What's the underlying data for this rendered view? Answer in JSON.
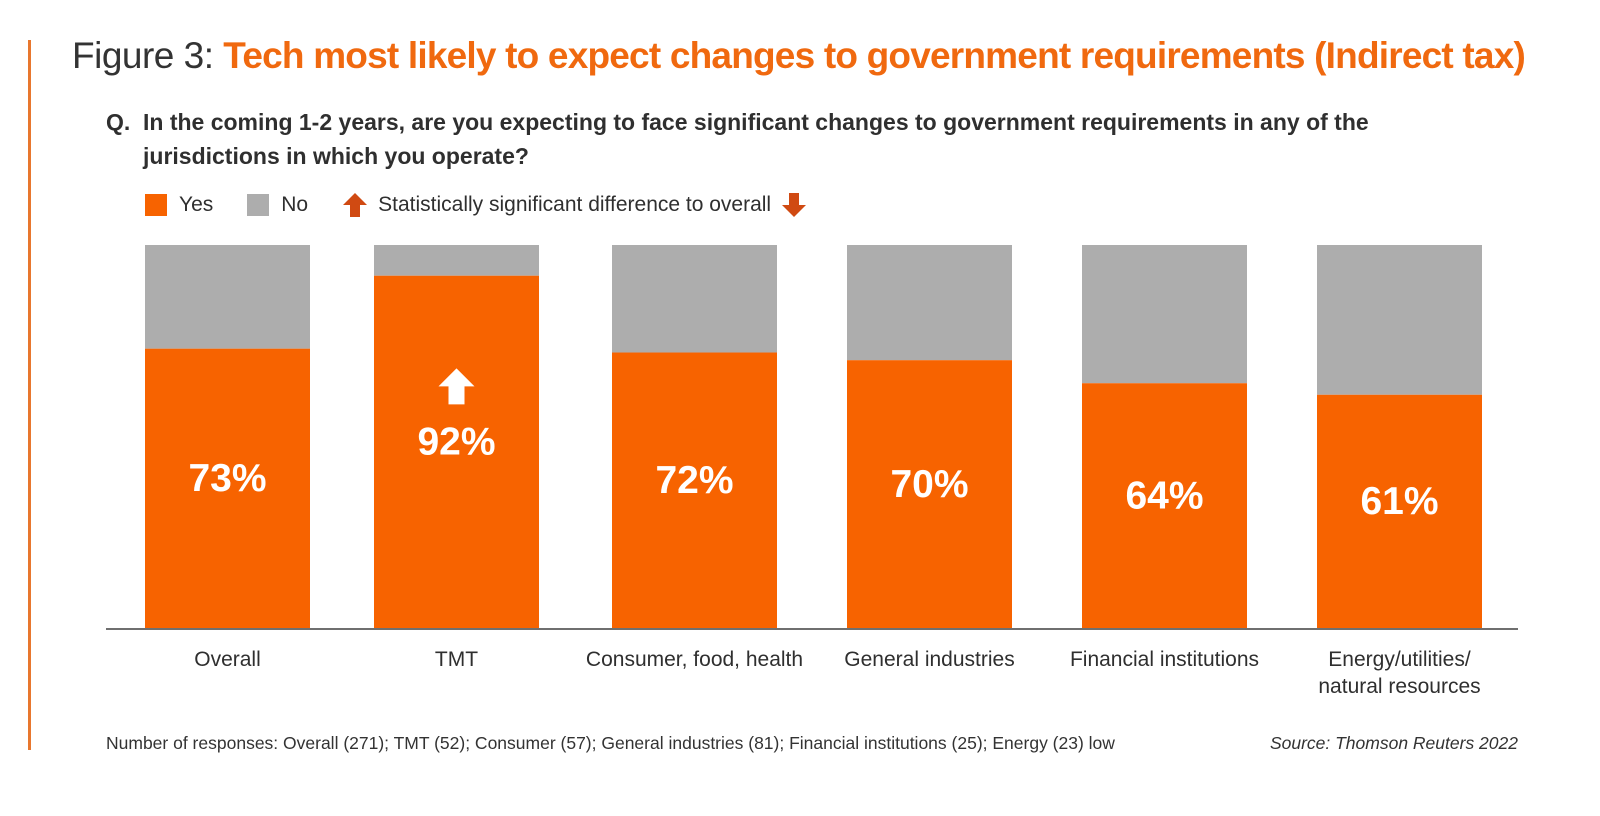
{
  "colors": {
    "yes": "#f76300",
    "no": "#adadad",
    "accent": "#f0690f",
    "arrow": "#d04a12",
    "axis": "#6f6f6f",
    "label_on_bar": "#ffffff"
  },
  "header": {
    "figure_prefix": "Figure 3:",
    "title": "Tech most likely to expect changes to government requirements (Indirect tax)"
  },
  "question": {
    "label": "Q.",
    "text": "In the coming 1-2 years, are you expecting to face significant changes to government requirements in any of the jurisdictions in which you operate?"
  },
  "legend": {
    "yes_label": "Yes",
    "no_label": "No",
    "significance_label": "Statistically significant difference to overall",
    "up_icon": "arrow-up-icon",
    "down_icon": "arrow-down-icon"
  },
  "chart_data": {
    "type": "bar",
    "stacked": true,
    "title": "Tech most likely to expect changes to government requirements (Indirect tax)",
    "xlabel": "",
    "ylabel": "",
    "ylim": [
      0,
      100
    ],
    "grid": false,
    "legend_position": "top-left",
    "categories": [
      "Overall",
      "TMT",
      "Consumer, food, health",
      "General industries",
      "Financial institutions",
      "Energy/utilities/ natural resources"
    ],
    "category_lines": [
      [
        "Overall"
      ],
      [
        "TMT"
      ],
      [
        "Consumer, food, health"
      ],
      [
        "General industries"
      ],
      [
        "Financial institutions"
      ],
      [
        "Energy/utilities/",
        "natural resources"
      ]
    ],
    "series": [
      {
        "name": "Yes",
        "values": [
          73,
          92,
          72,
          70,
          64,
          61
        ]
      },
      {
        "name": "No",
        "values": [
          27,
          8,
          28,
          30,
          36,
          39
        ]
      }
    ],
    "data_labels": [
      "73%",
      "92%",
      "72%",
      "70%",
      "64%",
      "61%"
    ],
    "significance": [
      "none",
      "up",
      "none",
      "none",
      "none",
      "none"
    ]
  },
  "footer": {
    "responses": "Number of responses: Overall (271); TMT (52); Consumer (57); General industries (81); Financial institutions (25); Energy (23) low",
    "source": "Source: Thomson Reuters 2022"
  }
}
